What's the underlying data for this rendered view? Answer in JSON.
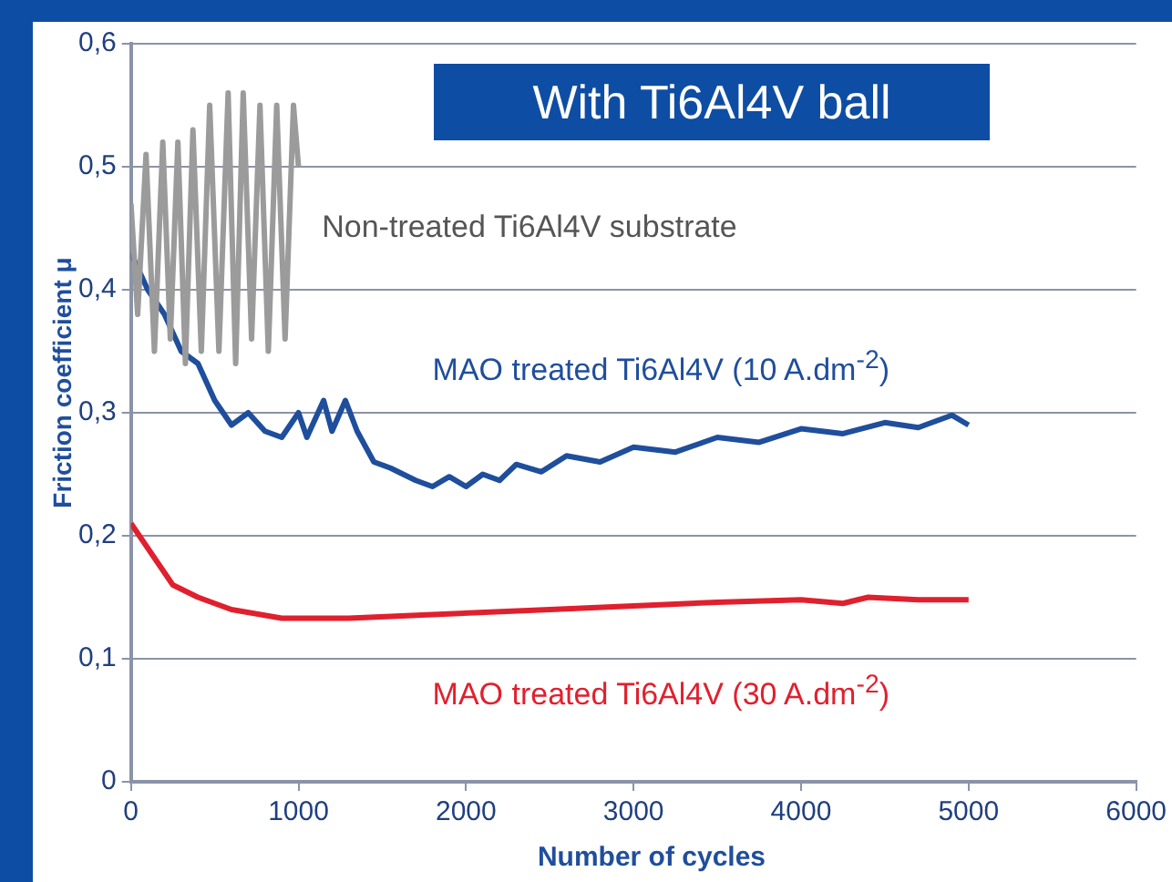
{
  "chart_data": {
    "type": "line",
    "title": "With Ti6Al4V ball",
    "xlabel": "Number of cycles",
    "ylabel": "Friction coefficient μ",
    "xlim": [
      0,
      6000
    ],
    "xticks": [
      0,
      1000,
      2000,
      3000,
      4000,
      5000,
      6000
    ],
    "ylim": [
      0,
      0.6
    ],
    "yticks": [
      0,
      {
        "value": 0.1,
        "label": "0,1"
      },
      {
        "value": 0.2,
        "label": "0,2"
      },
      {
        "value": 0.3,
        "label": "0,3"
      },
      {
        "value": 0.4,
        "label": "0,4"
      },
      {
        "value": 0.5,
        "label": "0,5"
      },
      {
        "value": 0.6,
        "label": "0,6"
      }
    ],
    "grid": "y",
    "legend": false,
    "marker": "none",
    "line_style": "solid",
    "series": [
      {
        "name": "Non-treated Ti6Al4V substrate",
        "color": "#9b9b9b",
        "x": [
          0,
          40,
          90,
          140,
          190,
          235,
          280,
          325,
          370,
          420,
          470,
          525,
          580,
          625,
          670,
          720,
          770,
          820,
          870,
          920,
          970,
          1000
        ],
        "values": [
          0.47,
          0.38,
          0.51,
          0.35,
          0.52,
          0.36,
          0.52,
          0.34,
          0.53,
          0.35,
          0.55,
          0.35,
          0.56,
          0.34,
          0.56,
          0.36,
          0.55,
          0.35,
          0.55,
          0.36,
          0.55,
          0.5
        ]
      },
      {
        "name": "MAO treated Ti6Al4V (10 A.dm$^{-2}$)",
        "color": "#1f4e9c",
        "x": [
          0,
          100,
          200,
          300,
          400,
          500,
          600,
          700,
          800,
          900,
          1000,
          1050,
          1150,
          1200,
          1280,
          1350,
          1450,
          1550,
          1700,
          1800,
          1900,
          2000,
          2100,
          2200,
          2300,
          2450,
          2600,
          2800,
          3000,
          3250,
          3500,
          3750,
          4000,
          4250,
          4500,
          4700,
          4900,
          5000
        ],
        "values": [
          0.43,
          0.4,
          0.38,
          0.35,
          0.34,
          0.31,
          0.29,
          0.3,
          0.285,
          0.28,
          0.3,
          0.28,
          0.31,
          0.285,
          0.31,
          0.285,
          0.26,
          0.255,
          0.245,
          0.24,
          0.248,
          0.24,
          0.25,
          0.245,
          0.258,
          0.252,
          0.265,
          0.26,
          0.272,
          0.268,
          0.28,
          0.276,
          0.287,
          0.283,
          0.292,
          0.288,
          0.298,
          0.29
        ]
      },
      {
        "name": "MAO treated Ti6Al4V (30 A.dm$^{-2}$)",
        "color": "#e0202e",
        "x": [
          0,
          100,
          250,
          400,
          600,
          900,
          1300,
          1800,
          2500,
          3000,
          3500,
          4000,
          4250,
          4400,
          4700,
          5000
        ],
        "values": [
          0.21,
          0.19,
          0.16,
          0.15,
          0.14,
          0.133,
          0.133,
          0.136,
          0.14,
          0.143,
          0.146,
          0.148,
          0.145,
          0.15,
          0.148,
          0.148
        ]
      }
    ]
  }
}
